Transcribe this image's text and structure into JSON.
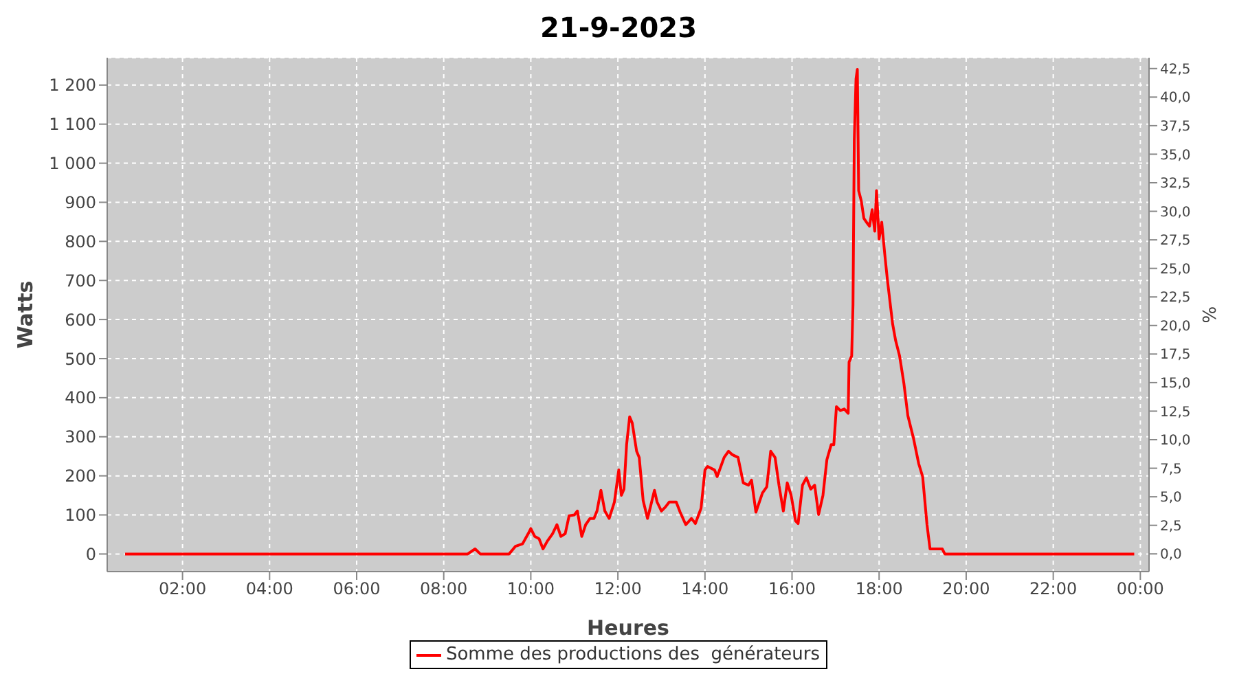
{
  "chart_data": {
    "type": "line",
    "title": "21-9-2023",
    "xlabel": "Heures",
    "ylabel": "Watts",
    "y2label": "%",
    "x": [
      0.68,
      7.29,
      8.55,
      8.72,
      8.84,
      9.5,
      9.65,
      9.81,
      9.94,
      10.0,
      10.09,
      10.19,
      10.28,
      10.38,
      10.5,
      10.6,
      10.69,
      10.79,
      10.88,
      11.0,
      11.07,
      11.17,
      11.26,
      11.36,
      11.45,
      11.52,
      11.61,
      11.7,
      11.8,
      11.92,
      12.02,
      12.08,
      12.14,
      12.2,
      12.27,
      12.33,
      12.43,
      12.49,
      12.58,
      12.68,
      12.74,
      12.84,
      12.9,
      13.0,
      13.09,
      13.18,
      13.34,
      13.43,
      13.56,
      13.69,
      13.78,
      13.91,
      14.0,
      14.06,
      14.22,
      14.28,
      14.44,
      14.54,
      14.63,
      14.76,
      14.88,
      15.0,
      15.07,
      15.17,
      15.32,
      15.42,
      15.51,
      15.61,
      15.7,
      15.8,
      15.89,
      15.98,
      16.08,
      16.14,
      16.24,
      16.33,
      16.43,
      16.52,
      16.61,
      16.71,
      16.8,
      16.9,
      16.96,
      17.02,
      17.11,
      17.2,
      17.29,
      17.31,
      17.37,
      17.4,
      17.43,
      17.47,
      17.5,
      17.53,
      17.59,
      17.65,
      17.71,
      17.78,
      17.84,
      17.9,
      17.94,
      18.0,
      18.06,
      18.13,
      18.19,
      18.31,
      18.38,
      18.47,
      18.57,
      18.66,
      18.79,
      18.91,
      19.0,
      19.1,
      19.17,
      19.45,
      19.51,
      23.86
    ],
    "series": [
      {
        "name": "Somme des productions des  générateurs",
        "color": "#ff0000",
        "values": [
          0,
          0,
          0,
          13,
          0,
          0,
          20,
          26,
          52,
          65,
          45,
          39,
          13,
          33,
          52,
          75,
          45,
          52,
          98,
          100,
          110,
          45,
          75,
          91,
          91,
          110,
          163,
          110,
          91,
          133,
          215,
          150,
          166,
          280,
          351,
          335,
          263,
          247,
          137,
          91,
          117,
          163,
          133,
          110,
          120,
          133,
          133,
          107,
          75,
          91,
          78,
          117,
          215,
          224,
          215,
          198,
          247,
          263,
          254,
          247,
          182,
          176,
          189,
          107,
          156,
          172,
          263,
          247,
          176,
          110,
          182,
          150,
          85,
          78,
          176,
          195,
          166,
          176,
          101,
          150,
          241,
          280,
          280,
          377,
          367,
          371,
          360,
          491,
          507,
          637,
          1060,
          1216,
          1240,
          930,
          904,
          859,
          849,
          839,
          881,
          826,
          930,
          806,
          849,
          767,
          702,
          589,
          546,
          507,
          436,
          354,
          296,
          231,
          198,
          75,
          13,
          13,
          0,
          0
        ]
      }
    ],
    "xlim": [
      0.27,
      24.2
    ],
    "xticks": [
      {
        "value": 2,
        "label": "02:00"
      },
      {
        "value": 4,
        "label": "04:00"
      },
      {
        "value": 6,
        "label": "06:00"
      },
      {
        "value": 8,
        "label": "08:00"
      },
      {
        "value": 10,
        "label": "10:00"
      },
      {
        "value": 12,
        "label": "12:00"
      },
      {
        "value": 14,
        "label": "14:00"
      },
      {
        "value": 16,
        "label": "16:00"
      },
      {
        "value": 18,
        "label": "18:00"
      },
      {
        "value": 20,
        "label": "20:00"
      },
      {
        "value": 22,
        "label": "22:00"
      },
      {
        "value": 24,
        "label": "00:00"
      }
    ],
    "ylim": [
      -45,
      1270
    ],
    "yticks": [
      0,
      100,
      200,
      300,
      400,
      500,
      600,
      700,
      800,
      900,
      {
        "value": 1000,
        "label": "1 000"
      },
      {
        "value": 1100,
        "label": "1 100"
      },
      {
        "value": 1200,
        "label": "1 200"
      }
    ],
    "y2lim": [
      -1.55,
      43.45
    ],
    "y2ticks": [
      {
        "value": 0,
        "label": "0,0"
      },
      {
        "value": 2.5,
        "label": "2,5"
      },
      {
        "value": 5,
        "label": "5,0"
      },
      {
        "value": 7.5,
        "label": "7,5"
      },
      {
        "value": 10,
        "label": "10,0"
      },
      {
        "value": 12.5,
        "label": "12,5"
      },
      {
        "value": 15,
        "label": "15,0"
      },
      {
        "value": 17.5,
        "label": "17,5"
      },
      {
        "value": 20,
        "label": "20,0"
      },
      {
        "value": 22.5,
        "label": "22,5"
      },
      {
        "value": 25,
        "label": "25,0"
      },
      {
        "value": 27.5,
        "label": "27,5"
      },
      {
        "value": 30,
        "label": "30,0"
      },
      {
        "value": 32.5,
        "label": "32,5"
      },
      {
        "value": 35,
        "label": "35,0"
      },
      {
        "value": 37.5,
        "label": "37,5"
      },
      {
        "value": 40,
        "label": "40,0"
      },
      {
        "value": 42.5,
        "label": "42,5"
      }
    ],
    "grid": true,
    "legend": "bottom"
  }
}
